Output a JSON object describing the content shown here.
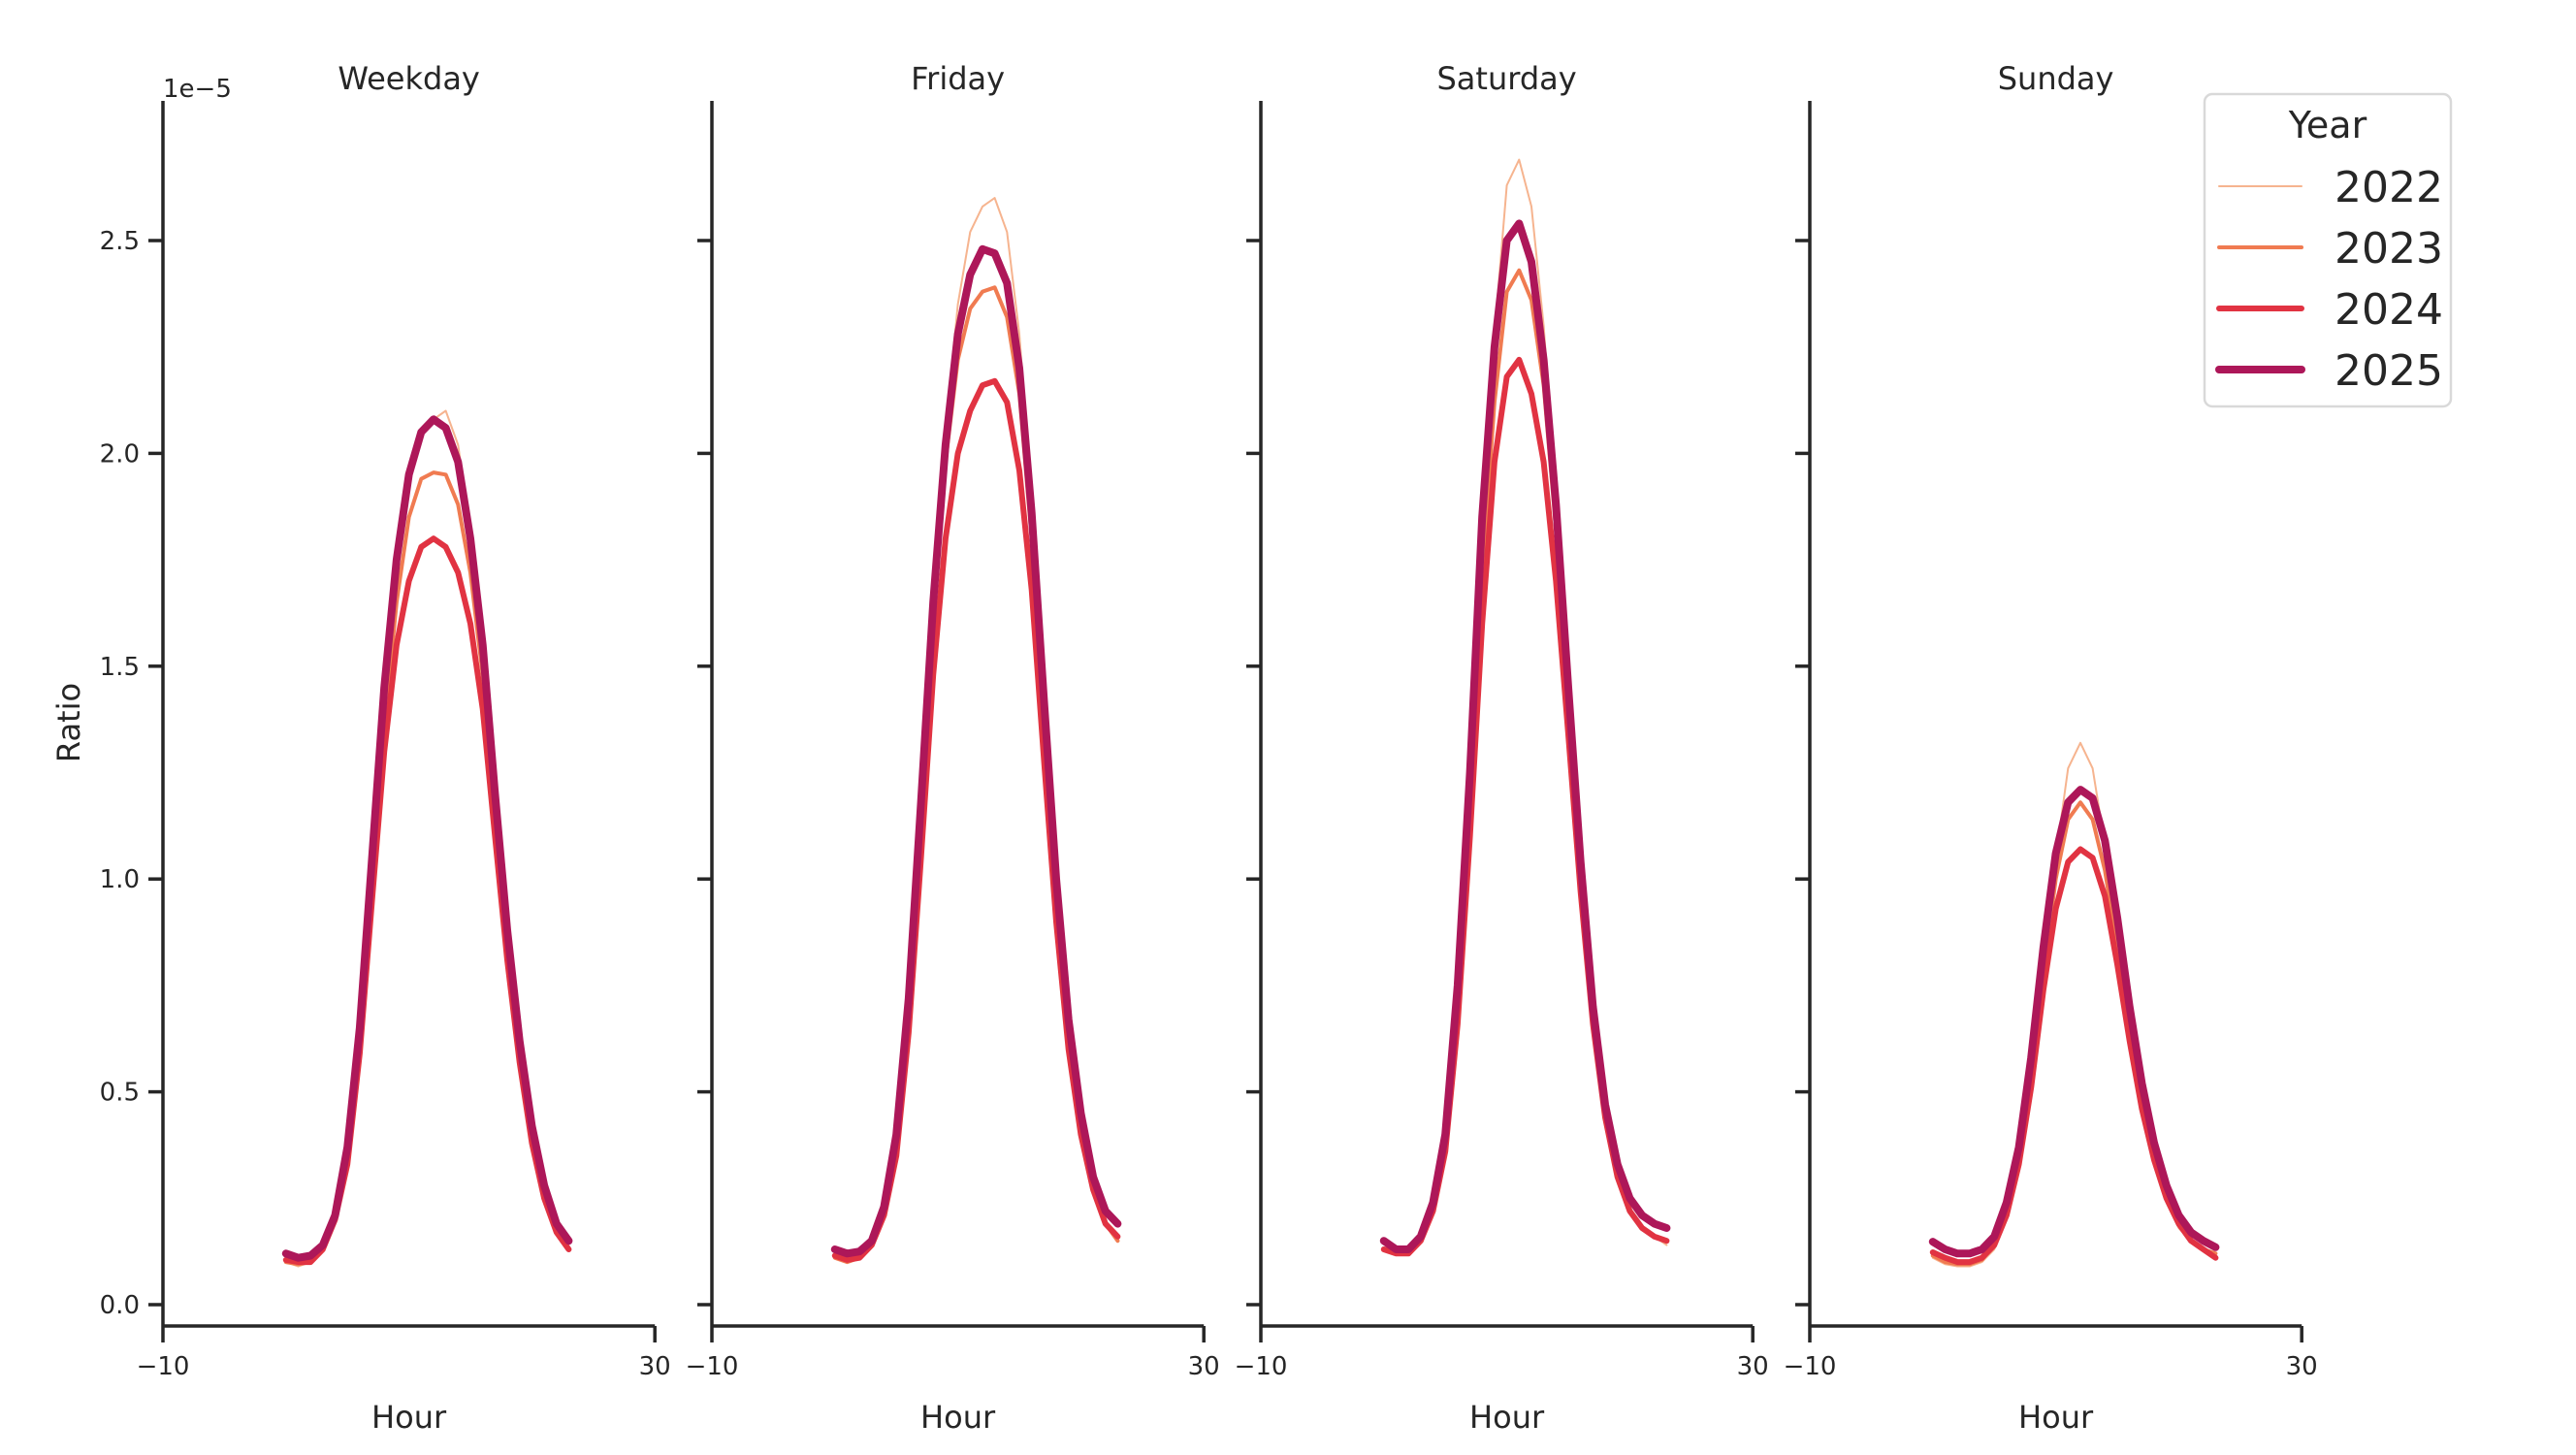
{
  "chart_data": {
    "type": "line",
    "layout": "facet-grid 1x4, shared y-axis",
    "x_label": "Hour",
    "y_label": "Ratio",
    "y_offset_text": "1e−5",
    "y_scale": 1e-05,
    "xlim": [
      -10,
      30
    ],
    "ylim": [
      -0.05,
      2.83
    ],
    "x_ticks": [
      -10,
      30
    ],
    "x_tick_labels": [
      "−10",
      "30"
    ],
    "y_ticks": [
      0.0,
      0.5,
      1.0,
      1.5,
      2.0,
      2.5
    ],
    "y_tick_labels": [
      "0.0",
      "0.5",
      "1.0",
      "1.5",
      "2.0",
      "2.5"
    ],
    "grid": false,
    "legend": {
      "title": "Year",
      "position": "upper right",
      "entries": [
        {
          "label": "2022",
          "color": "#f6b48f",
          "width": 2
        },
        {
          "label": "2023",
          "color": "#f07b51",
          "width": 4
        },
        {
          "label": "2024",
          "color": "#e13342",
          "width": 6
        },
        {
          "label": "2025",
          "color": "#ad1759",
          "width": 8
        }
      ]
    },
    "x": [
      0,
      1,
      2,
      3,
      4,
      5,
      6,
      7,
      8,
      9,
      10,
      11,
      12,
      13,
      14,
      15,
      16,
      17,
      18,
      19,
      20,
      21,
      22,
      23
    ],
    "panels": [
      {
        "title": "Weekday",
        "series": [
          {
            "name": "2022",
            "values": [
              0.1,
              0.09,
              0.1,
              0.13,
              0.2,
              0.34,
              0.62,
              1.0,
              1.4,
              1.72,
              1.93,
              2.05,
              2.08,
              2.1,
              2.02,
              1.82,
              1.52,
              1.15,
              0.83,
              0.57,
              0.38,
              0.25,
              0.17,
              0.13
            ]
          },
          {
            "name": "2023",
            "values": [
              0.1,
              0.095,
              0.1,
              0.13,
              0.2,
              0.34,
              0.61,
              0.98,
              1.36,
              1.65,
              1.85,
              1.94,
              1.955,
              1.95,
              1.88,
              1.72,
              1.48,
              1.14,
              0.83,
              0.58,
              0.39,
              0.26,
              0.17,
              0.13
            ]
          },
          {
            "name": "2024",
            "values": [
              0.105,
              0.1,
              0.1,
              0.13,
              0.2,
              0.33,
              0.59,
              0.95,
              1.3,
              1.55,
              1.7,
              1.78,
              1.8,
              1.78,
              1.72,
              1.6,
              1.4,
              1.1,
              0.81,
              0.57,
              0.38,
              0.25,
              0.17,
              0.13
            ]
          },
          {
            "name": "2025",
            "values": [
              0.12,
              0.11,
              0.115,
              0.14,
              0.21,
              0.37,
              0.65,
              1.05,
              1.45,
              1.75,
              1.95,
              2.05,
              2.08,
              2.06,
              1.98,
              1.8,
              1.55,
              1.2,
              0.88,
              0.62,
              0.42,
              0.28,
              0.19,
              0.15
            ]
          }
        ]
      },
      {
        "title": "Friday",
        "series": [
          {
            "name": "2022",
            "values": [
              0.11,
              0.1,
              0.11,
              0.14,
              0.22,
              0.38,
              0.7,
              1.15,
              1.65,
              2.05,
              2.35,
              2.52,
              2.58,
              2.6,
              2.52,
              2.28,
              1.9,
              1.42,
              0.98,
              0.65,
              0.42,
              0.27,
              0.19,
              0.15
            ]
          },
          {
            "name": "2023",
            "values": [
              0.11,
              0.1,
              0.11,
              0.14,
              0.22,
              0.37,
              0.68,
              1.12,
              1.6,
              1.98,
              2.22,
              2.34,
              2.38,
              2.39,
              2.32,
              2.14,
              1.8,
              1.36,
              0.95,
              0.63,
              0.41,
              0.27,
              0.19,
              0.15
            ]
          },
          {
            "name": "2024",
            "values": [
              0.115,
              0.105,
              0.11,
              0.14,
              0.21,
              0.35,
              0.64,
              1.05,
              1.48,
              1.8,
              2.0,
              2.1,
              2.16,
              2.17,
              2.12,
              1.96,
              1.68,
              1.28,
              0.9,
              0.6,
              0.4,
              0.27,
              0.19,
              0.16
            ]
          },
          {
            "name": "2025",
            "values": [
              0.13,
              0.12,
              0.125,
              0.15,
              0.23,
              0.4,
              0.72,
              1.18,
              1.65,
              2.02,
              2.28,
              2.42,
              2.48,
              2.47,
              2.4,
              2.2,
              1.86,
              1.42,
              1.0,
              0.67,
              0.45,
              0.3,
              0.22,
              0.19
            ]
          }
        ]
      },
      {
        "title": "Saturday",
        "series": [
          {
            "name": "2022",
            "values": [
              0.13,
              0.12,
              0.12,
              0.15,
              0.22,
              0.38,
              0.72,
              1.22,
              1.8,
              2.28,
              2.63,
              2.69,
              2.58,
              2.3,
              1.9,
              1.45,
              1.02,
              0.68,
              0.45,
              0.3,
              0.22,
              0.18,
              0.16,
              0.14
            ]
          },
          {
            "name": "2023",
            "values": [
              0.13,
              0.12,
              0.12,
              0.15,
              0.22,
              0.37,
              0.7,
              1.18,
              1.72,
              2.12,
              2.38,
              2.43,
              2.36,
              2.16,
              1.82,
              1.4,
              1.0,
              0.67,
              0.44,
              0.3,
              0.22,
              0.18,
              0.16,
              0.15
            ]
          },
          {
            "name": "2024",
            "values": [
              0.13,
              0.12,
              0.12,
              0.15,
              0.22,
              0.36,
              0.66,
              1.1,
              1.6,
              1.98,
              2.18,
              2.22,
              2.14,
              1.98,
              1.7,
              1.34,
              0.97,
              0.66,
              0.44,
              0.3,
              0.22,
              0.18,
              0.16,
              0.15
            ]
          },
          {
            "name": "2025",
            "values": [
              0.15,
              0.13,
              0.13,
              0.16,
              0.24,
              0.4,
              0.75,
              1.25,
              1.85,
              2.25,
              2.5,
              2.54,
              2.45,
              2.22,
              1.88,
              1.45,
              1.04,
              0.7,
              0.47,
              0.33,
              0.25,
              0.21,
              0.19,
              0.18
            ]
          }
        ]
      },
      {
        "title": "Sunday",
        "series": [
          {
            "name": "2022",
            "values": [
              0.11,
              0.095,
              0.09,
              0.09,
              0.1,
              0.13,
              0.2,
              0.32,
              0.52,
              0.78,
              1.05,
              1.26,
              1.32,
              1.26,
              1.08,
              0.86,
              0.64,
              0.46,
              0.33,
              0.24,
              0.18,
              0.15,
              0.13,
              0.12
            ]
          },
          {
            "name": "2023",
            "values": [
              0.115,
              0.1,
              0.095,
              0.095,
              0.105,
              0.14,
              0.21,
              0.33,
              0.53,
              0.78,
              1.0,
              1.14,
              1.18,
              1.14,
              1.02,
              0.84,
              0.64,
              0.47,
              0.34,
              0.25,
              0.19,
              0.15,
              0.13,
              0.12
            ]
          },
          {
            "name": "2024",
            "values": [
              0.123,
              0.11,
              0.1,
              0.1,
              0.11,
              0.14,
              0.21,
              0.33,
              0.51,
              0.74,
              0.93,
              1.04,
              1.07,
              1.05,
              0.96,
              0.8,
              0.62,
              0.46,
              0.34,
              0.25,
              0.19,
              0.15,
              0.13,
              0.11
            ]
          },
          {
            "name": "2025",
            "values": [
              0.148,
              0.13,
              0.12,
              0.12,
              0.13,
              0.16,
              0.24,
              0.37,
              0.58,
              0.84,
              1.06,
              1.18,
              1.21,
              1.19,
              1.09,
              0.91,
              0.7,
              0.52,
              0.38,
              0.28,
              0.21,
              0.17,
              0.15,
              0.135
            ]
          }
        ]
      }
    ]
  }
}
